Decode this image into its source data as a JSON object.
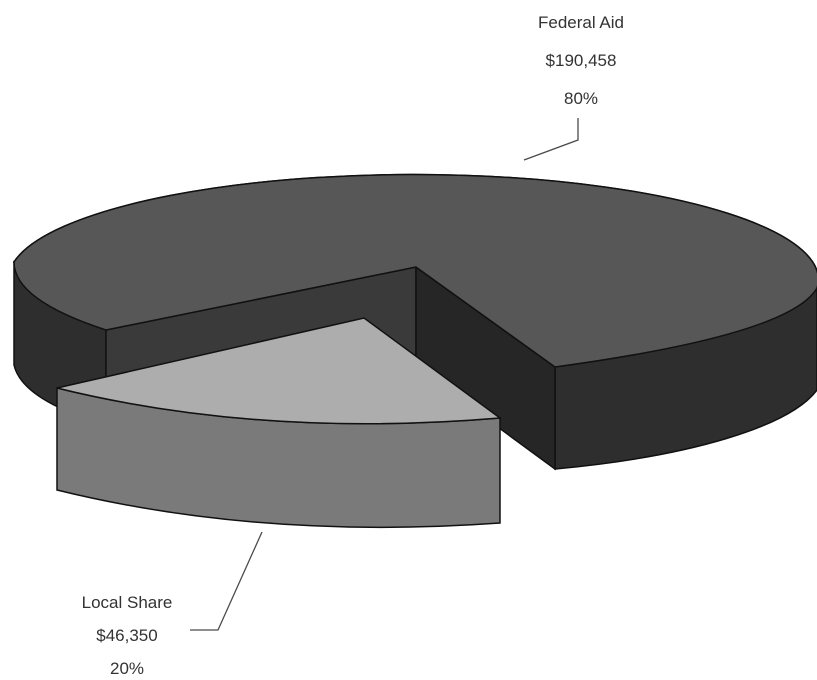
{
  "chart_data": {
    "type": "pie",
    "style": "3d-exploded",
    "slices": [
      {
        "label": "Federal Aid",
        "amount": "$190,458",
        "percent_label": "80%",
        "value": 190458,
        "percent": 80,
        "exploded": false,
        "top_color": "#575757",
        "side_color": "#2e2e2e"
      },
      {
        "label": "Local Share",
        "amount": "$46,350",
        "percent_label": "20%",
        "value": 46350,
        "percent": 20,
        "exploded": true,
        "top_color": "#adadad",
        "side_color": "#7a7a7a"
      }
    ]
  }
}
